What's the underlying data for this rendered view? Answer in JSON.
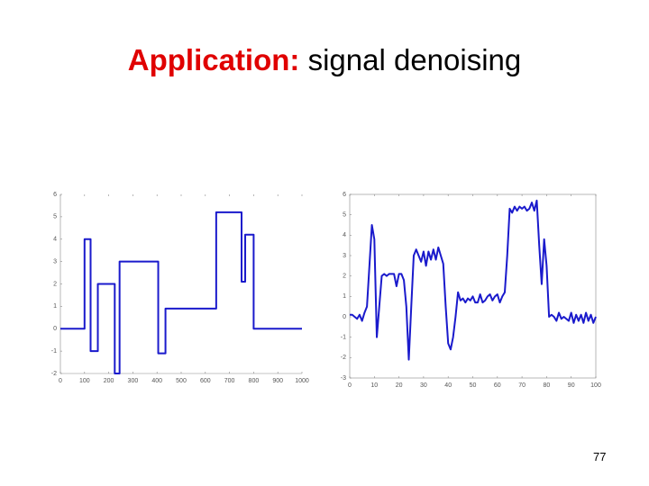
{
  "title": {
    "label": "Application:",
    "text": "signal denoising"
  },
  "page_number": "77",
  "chart_data": [
    {
      "type": "line",
      "frame": "open",
      "color": "#1a1acc",
      "xlim": [
        0,
        1000
      ],
      "ylim": [
        -2,
        6
      ],
      "xticks": [
        0,
        100,
        200,
        300,
        400,
        500,
        600,
        700,
        800,
        900,
        1000
      ],
      "yticks": [
        -2,
        -1,
        0,
        1,
        2,
        3,
        4,
        5,
        6
      ],
      "x": [
        0,
        100,
        100,
        125,
        125,
        155,
        155,
        225,
        225,
        245,
        245,
        405,
        405,
        435,
        435,
        645,
        645,
        750,
        750,
        765,
        765,
        800,
        800,
        1000
      ],
      "values": [
        0,
        0,
        4,
        4,
        -1,
        -1,
        2,
        2,
        -2,
        -2,
        3,
        3,
        -1.1,
        -1.1,
        0.9,
        0.9,
        5.2,
        5.2,
        2.1,
        2.1,
        4.2,
        4.2,
        0,
        0
      ]
    },
    {
      "type": "line",
      "frame": "box",
      "color": "#1a1acc",
      "xlim": [
        0,
        100
      ],
      "ylim": [
        -3,
        6
      ],
      "xticks": [
        0,
        10,
        20,
        30,
        40,
        50,
        60,
        70,
        80,
        90,
        100
      ],
      "yticks": [
        -3,
        -2,
        -1,
        0,
        1,
        2,
        3,
        4,
        5,
        6
      ],
      "x": [
        0,
        1,
        2,
        3,
        4,
        5,
        6,
        7,
        8,
        9,
        10,
        11,
        12,
        13,
        14,
        15,
        16,
        17,
        18,
        19,
        20,
        21,
        22,
        23,
        24,
        25,
        26,
        27,
        28,
        29,
        30,
        31,
        32,
        33,
        34,
        35,
        36,
        37,
        38,
        39,
        40,
        41,
        42,
        43,
        44,
        45,
        46,
        47,
        48,
        49,
        50,
        51,
        52,
        53,
        54,
        55,
        56,
        57,
        58,
        59,
        60,
        61,
        62,
        63,
        64,
        65,
        66,
        67,
        68,
        69,
        70,
        71,
        72,
        73,
        74,
        75,
        76,
        77,
        78,
        79,
        80,
        81,
        82,
        83,
        84,
        85,
        86,
        87,
        88,
        89,
        90,
        91,
        92,
        93,
        94,
        95,
        96,
        97,
        98,
        99,
        100
      ],
      "values": [
        0.1,
        0.1,
        0,
        -0.1,
        0.1,
        -0.2,
        0.2,
        0.5,
        2.5,
        4.5,
        3.8,
        -1,
        0.5,
        2,
        2.1,
        2,
        2.1,
        2.1,
        2.1,
        1.5,
        2.1,
        2.1,
        1.8,
        0.5,
        -2.1,
        0.5,
        3,
        3.3,
        3,
        2.7,
        3.2,
        2.5,
        3.2,
        2.8,
        3.3,
        2.8,
        3.4,
        3,
        2.6,
        0.5,
        -1.3,
        -1.6,
        -1,
        0,
        1.2,
        0.8,
        0.9,
        0.7,
        0.9,
        0.8,
        1,
        0.7,
        0.7,
        1.1,
        0.7,
        0.8,
        1,
        1.1,
        0.8,
        1,
        1.1,
        0.7,
        1,
        1.2,
        3,
        5.3,
        5.1,
        5.4,
        5.2,
        5.4,
        5.3,
        5.4,
        5.2,
        5.3,
        5.6,
        5.2,
        5.7,
        3.5,
        1.6,
        3.8,
        2.5,
        0,
        0.1,
        0,
        -0.2,
        0.2,
        -0.1,
        0,
        -0.1,
        -0.2,
        0.2,
        -0.3,
        0.1,
        -0.2,
        0.1,
        -0.3,
        0.2,
        -0.2,
        0.1,
        -0.3,
        0
      ]
    }
  ]
}
